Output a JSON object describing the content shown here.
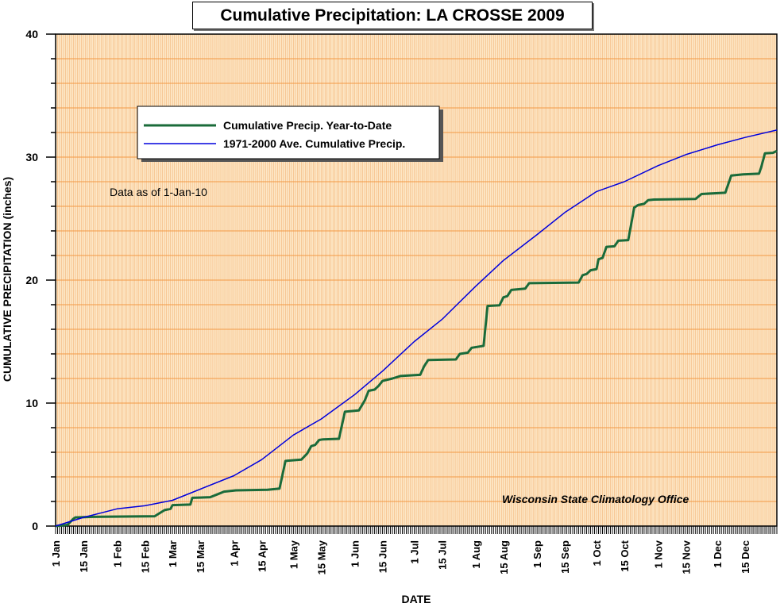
{
  "chart_data": {
    "type": "line",
    "title": "Cumulative Precipitation: LA CROSSE 2009",
    "xlabel": "DATE",
    "ylabel": "CUMULATIVE PRECIPITATION (inches)",
    "ylim": [
      0,
      40
    ],
    "y_ticks": [
      0,
      10,
      20,
      30,
      40
    ],
    "x_date_range": [
      "2009-01-01",
      "2009-12-31"
    ],
    "x_ticks": [
      {
        "label": "1 Jan",
        "date": "2009-01-01"
      },
      {
        "label": "15 Jan",
        "date": "2009-01-15"
      },
      {
        "label": "1 Feb",
        "date": "2009-02-01"
      },
      {
        "label": "15 Feb",
        "date": "2009-02-15"
      },
      {
        "label": "1 Mar",
        "date": "2009-03-01"
      },
      {
        "label": "15 Mar",
        "date": "2009-03-15"
      },
      {
        "label": "1 Apr",
        "date": "2009-04-01"
      },
      {
        "label": "15 Apr",
        "date": "2009-04-15"
      },
      {
        "label": "1 May",
        "date": "2009-05-01"
      },
      {
        "label": "15 May",
        "date": "2009-05-15"
      },
      {
        "label": "1 Jun",
        "date": "2009-06-01"
      },
      {
        "label": "15 Jun",
        "date": "2009-06-15"
      },
      {
        "label": "1 Jul",
        "date": "2009-07-01"
      },
      {
        "label": "15 Jul",
        "date": "2009-07-15"
      },
      {
        "label": "1 Aug",
        "date": "2009-08-01"
      },
      {
        "label": "15 Aug",
        "date": "2009-08-15"
      },
      {
        "label": "1 Sep",
        "date": "2009-09-01"
      },
      {
        "label": "15 Sep",
        "date": "2009-09-15"
      },
      {
        "label": "1 Oct",
        "date": "2009-10-01"
      },
      {
        "label": "15 Oct",
        "date": "2009-10-15"
      },
      {
        "label": "1 Nov",
        "date": "2009-11-01"
      },
      {
        "label": "15 Nov",
        "date": "2009-11-15"
      },
      {
        "label": "1 Dec",
        "date": "2009-12-01"
      },
      {
        "label": "15 Dec",
        "date": "2009-12-15"
      }
    ],
    "grid": true,
    "legend_position": "top-left",
    "annotations": [
      "Data as of 1-Jan-10",
      "Wisconsin State Climatology Office"
    ],
    "series": [
      {
        "name": "Cumulative Precip. Year-to-Date",
        "color": "#1a6b3a",
        "points": [
          [
            "2009-01-01",
            0
          ],
          [
            "2009-01-07",
            0.1
          ],
          [
            "2009-01-10",
            0.6
          ],
          [
            "2009-01-11",
            0.7
          ],
          [
            "2009-01-20",
            0.75
          ],
          [
            "2009-02-20",
            0.8
          ],
          [
            "2009-02-22",
            1.0
          ],
          [
            "2009-02-25",
            1.3
          ],
          [
            "2009-02-28",
            1.4
          ],
          [
            "2009-03-01",
            1.7
          ],
          [
            "2009-03-10",
            1.75
          ],
          [
            "2009-03-11",
            2.3
          ],
          [
            "2009-03-20",
            2.35
          ],
          [
            "2009-03-24",
            2.6
          ],
          [
            "2009-03-27",
            2.8
          ],
          [
            "2009-04-02",
            2.9
          ],
          [
            "2009-04-18",
            2.95
          ],
          [
            "2009-04-21",
            3.0
          ],
          [
            "2009-04-24",
            3.05
          ],
          [
            "2009-04-27",
            5.3
          ],
          [
            "2009-05-05",
            5.4
          ],
          [
            "2009-05-08",
            5.9
          ],
          [
            "2009-05-10",
            6.5
          ],
          [
            "2009-05-12",
            6.6
          ],
          [
            "2009-05-14",
            7.0
          ],
          [
            "2009-05-16",
            7.05
          ],
          [
            "2009-05-24",
            7.1
          ],
          [
            "2009-05-27",
            9.3
          ],
          [
            "2009-06-03",
            9.4
          ],
          [
            "2009-06-06",
            10.2
          ],
          [
            "2009-06-08",
            11.0
          ],
          [
            "2009-06-11",
            11.1
          ],
          [
            "2009-06-13",
            11.4
          ],
          [
            "2009-06-15",
            11.8
          ],
          [
            "2009-06-20",
            12.0
          ],
          [
            "2009-06-24",
            12.2
          ],
          [
            "2009-07-04",
            12.3
          ],
          [
            "2009-07-06",
            13.0
          ],
          [
            "2009-07-08",
            13.5
          ],
          [
            "2009-07-22",
            13.55
          ],
          [
            "2009-07-24",
            14.0
          ],
          [
            "2009-07-28",
            14.1
          ],
          [
            "2009-07-30",
            14.5
          ],
          [
            "2009-08-03",
            14.6
          ],
          [
            "2009-08-05",
            14.65
          ],
          [
            "2009-08-07",
            17.9
          ],
          [
            "2009-08-13",
            17.95
          ],
          [
            "2009-08-15",
            18.6
          ],
          [
            "2009-08-17",
            18.7
          ],
          [
            "2009-08-19",
            19.2
          ],
          [
            "2009-08-26",
            19.3
          ],
          [
            "2009-08-28",
            19.75
          ],
          [
            "2009-09-22",
            19.8
          ],
          [
            "2009-09-24",
            20.4
          ],
          [
            "2009-09-26",
            20.5
          ],
          [
            "2009-09-28",
            20.8
          ],
          [
            "2009-10-01",
            20.9
          ],
          [
            "2009-10-02",
            21.7
          ],
          [
            "2009-10-04",
            21.8
          ],
          [
            "2009-10-06",
            22.7
          ],
          [
            "2009-10-10",
            22.75
          ],
          [
            "2009-10-12",
            23.2
          ],
          [
            "2009-10-17",
            23.25
          ],
          [
            "2009-10-19",
            25.0
          ],
          [
            "2009-10-20",
            25.9
          ],
          [
            "2009-10-22",
            26.1
          ],
          [
            "2009-10-25",
            26.2
          ],
          [
            "2009-10-27",
            26.5
          ],
          [
            "2009-10-30",
            26.55
          ],
          [
            "2009-11-20",
            26.6
          ],
          [
            "2009-11-23",
            27.0
          ],
          [
            "2009-12-05",
            27.1
          ],
          [
            "2009-12-08",
            28.5
          ],
          [
            "2009-12-14",
            28.6
          ],
          [
            "2009-12-22",
            28.65
          ],
          [
            "2009-12-23",
            29.1
          ],
          [
            "2009-12-25",
            30.3
          ],
          [
            "2009-12-29",
            30.35
          ],
          [
            "2009-12-31",
            30.5
          ]
        ]
      },
      {
        "name": "1971-2000 Ave. Cumulative Precip.",
        "color": "#0000dd",
        "points": [
          [
            "2009-01-01",
            0
          ],
          [
            "2009-01-15",
            0.7
          ],
          [
            "2009-02-01",
            1.4
          ],
          [
            "2009-02-15",
            1.65
          ],
          [
            "2009-03-01",
            2.1
          ],
          [
            "2009-03-15",
            3.0
          ],
          [
            "2009-04-01",
            4.1
          ],
          [
            "2009-04-15",
            5.4
          ],
          [
            "2009-05-01",
            7.4
          ],
          [
            "2009-05-15",
            8.7
          ],
          [
            "2009-06-01",
            10.7
          ],
          [
            "2009-06-15",
            12.6
          ],
          [
            "2009-07-01",
            15.0
          ],
          [
            "2009-07-15",
            16.8
          ],
          [
            "2009-08-01",
            19.5
          ],
          [
            "2009-08-15",
            21.6
          ],
          [
            "2009-09-01",
            23.7
          ],
          [
            "2009-09-15",
            25.5
          ],
          [
            "2009-10-01",
            27.2
          ],
          [
            "2009-10-15",
            28.0
          ],
          [
            "2009-11-01",
            29.3
          ],
          [
            "2009-11-15",
            30.2
          ],
          [
            "2009-12-01",
            31.0
          ],
          [
            "2009-12-15",
            31.6
          ],
          [
            "2009-12-31",
            32.2
          ]
        ]
      }
    ]
  }
}
